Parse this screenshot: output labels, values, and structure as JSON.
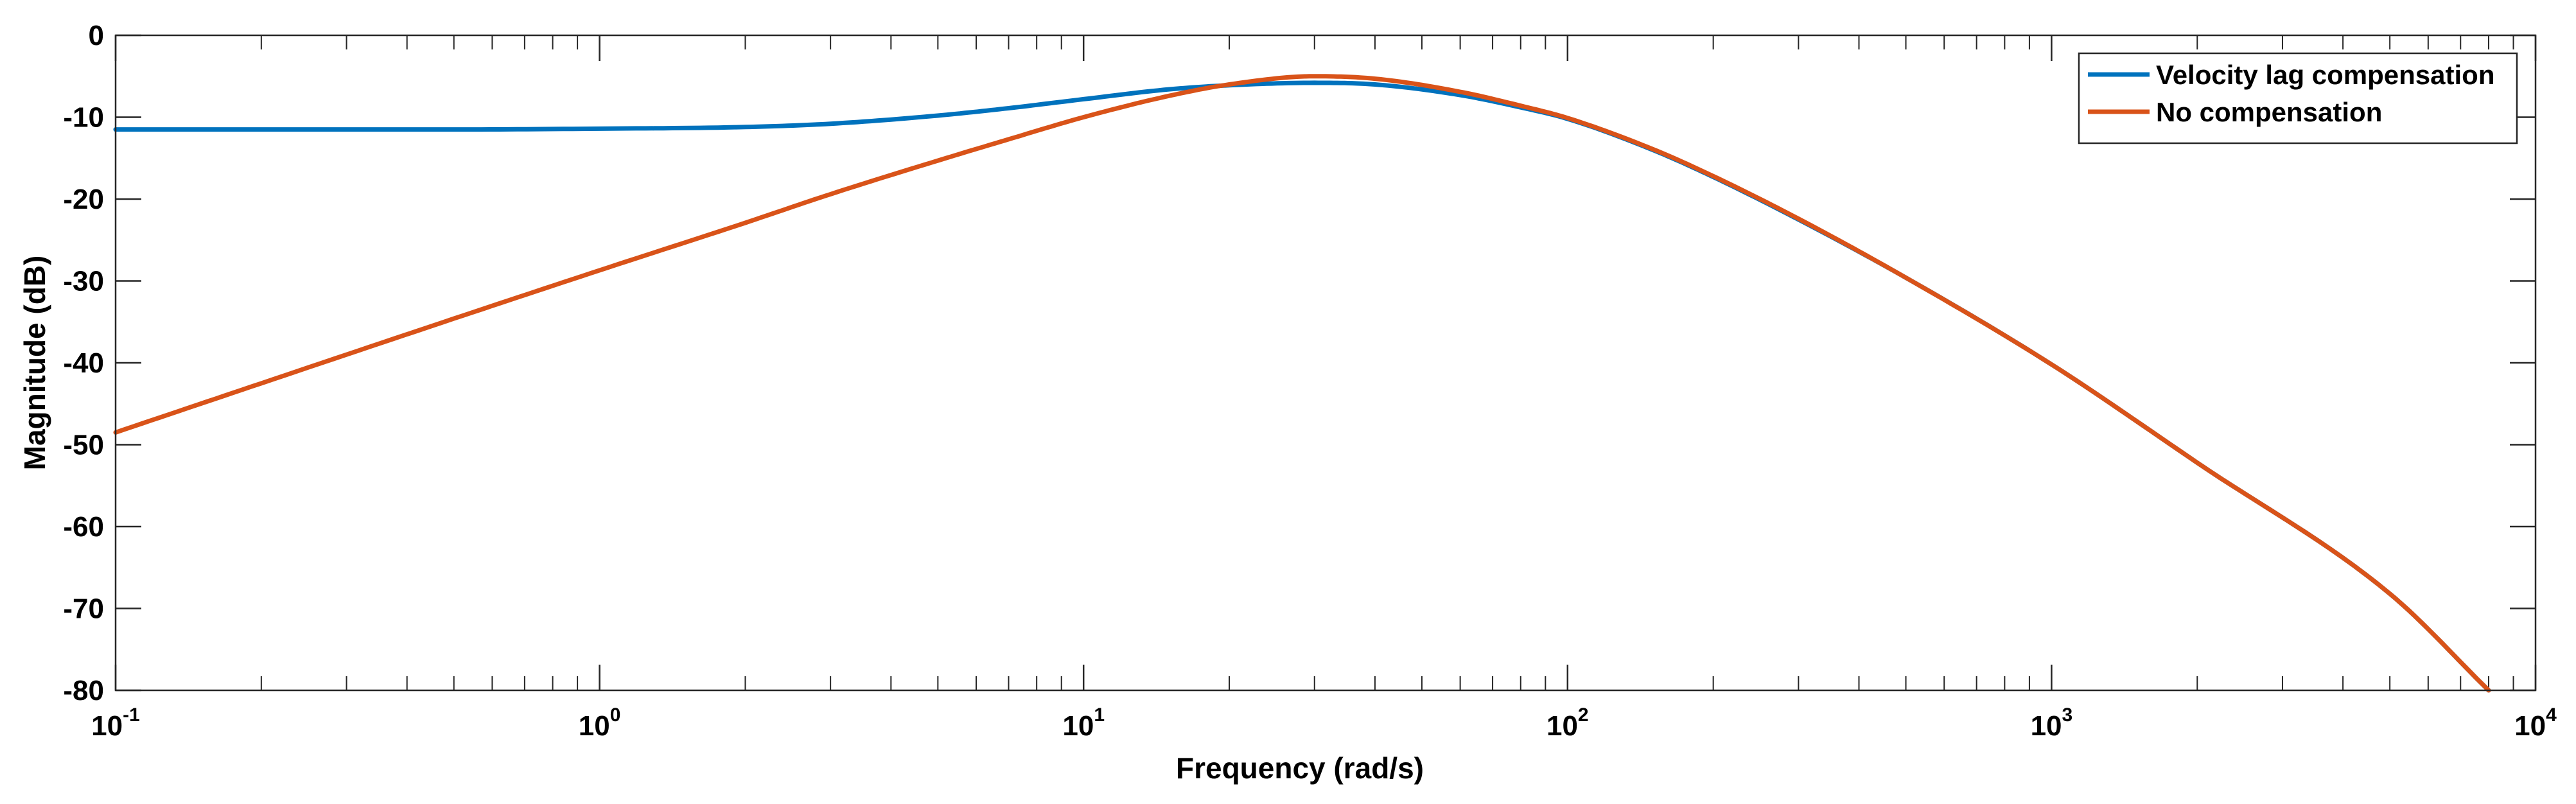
{
  "chart_data": {
    "type": "line",
    "title": "",
    "xlabel": "Frequency  (rad/s)",
    "ylabel": "Magnitude (dB)",
    "xscale": "log",
    "xlim": [
      0.1,
      10000
    ],
    "ylim": [
      -80,
      0
    ],
    "x_ticks": [
      {
        "base": "10",
        "exp": "-1"
      },
      {
        "base": "10",
        "exp": "0"
      },
      {
        "base": "10",
        "exp": "1"
      },
      {
        "base": "10",
        "exp": "2"
      },
      {
        "base": "10",
        "exp": "3"
      },
      {
        "base": "10",
        "exp": "4"
      }
    ],
    "y_ticks": [
      "0",
      "-10",
      "-20",
      "-30",
      "-40",
      "-50",
      "-60",
      "-70",
      "-80"
    ],
    "grid": false,
    "legend_position": "top-right",
    "series": [
      {
        "name": "Velocity lag compensation",
        "color": "#0072BD",
        "x": [
          0.1,
          0.2,
          0.5,
          1,
          2,
          3,
          5,
          7,
          10,
          15,
          20,
          30,
          40,
          60,
          80,
          100,
          150,
          200,
          300,
          500,
          1000,
          2000,
          5000,
          8000
        ],
        "y": [
          -11.5,
          -11.5,
          -11.5,
          -11.4,
          -11.2,
          -10.8,
          -9.8,
          -8.9,
          -7.8,
          -6.6,
          -6.1,
          -5.8,
          -6.0,
          -7.3,
          -8.8,
          -10.2,
          -14.0,
          -17.3,
          -22.5,
          -29.6,
          -40.2,
          -52.2,
          -68.2,
          -80.0
        ]
      },
      {
        "name": "No compensation",
        "color": "#D95319",
        "x": [
          0.1,
          0.2,
          0.5,
          1,
          2,
          3,
          5,
          7,
          10,
          15,
          20,
          30,
          40,
          60,
          80,
          100,
          150,
          200,
          300,
          500,
          1000,
          2000,
          5000,
          8000
        ],
        "y": [
          -48.5,
          -42.5,
          -34.6,
          -28.7,
          -22.9,
          -19.4,
          -15.3,
          -12.7,
          -10.0,
          -7.4,
          -6.0,
          -5.0,
          -5.3,
          -6.9,
          -8.6,
          -10.1,
          -13.9,
          -17.2,
          -22.4,
          -29.6,
          -40.2,
          -52.2,
          -68.2,
          -80.0
        ]
      }
    ]
  }
}
